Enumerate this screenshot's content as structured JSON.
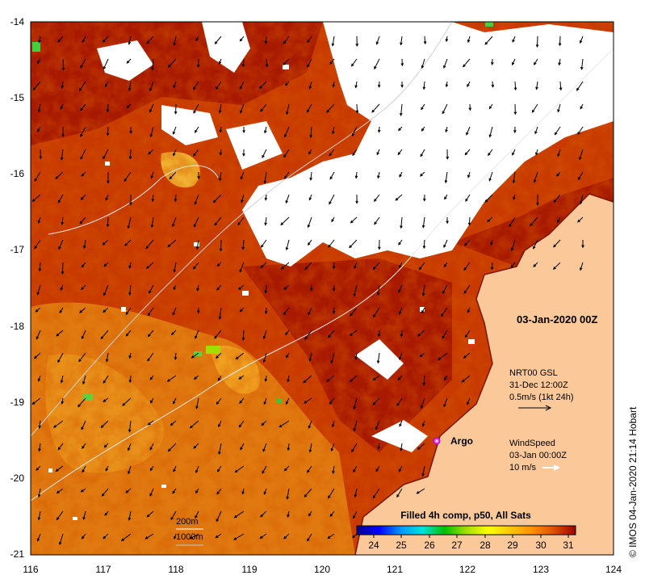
{
  "map": {
    "lon_ticks": [
      "116",
      "117",
      "118",
      "119",
      "120",
      "121",
      "122",
      "123",
      "124"
    ],
    "lat_ticks": [
      "-14",
      "-15",
      "-16",
      "-17",
      "-18",
      "-19",
      "-20",
      "-21"
    ]
  },
  "timestamp_label": "03-Jan-2020 00Z",
  "current_legend": {
    "title": "NRT00 GSL",
    "time": "31-Dec 12:00Z",
    "scale": "0.5m/s (1kt 24h)"
  },
  "wind_legend": {
    "title": "WindSpeed",
    "time": "03-Jan 00:00Z",
    "scale": "10 m/s"
  },
  "argo": {
    "label": "Argo",
    "marker_color": "#ff33ff"
  },
  "bathymetry_legend": {
    "contour1": "200m",
    "contour2": "1000m"
  },
  "colorbar": {
    "title": "Filled 4h comp, p50, All Sats",
    "ticks": [
      "24",
      "25",
      "26",
      "27",
      "28",
      "29",
      "30",
      "31"
    ],
    "colors": [
      "#00008b",
      "#0000ff",
      "#0096ff",
      "#00e0e0",
      "#00c000",
      "#a0e000",
      "#ffff00",
      "#ffc800",
      "#ff9000",
      "#e05000",
      "#c02000",
      "#a00000"
    ]
  },
  "credit": "© IMOS 04-Jan-2020 21:14 Hobart",
  "colors": {
    "land": "#fbc89a",
    "cloud": "#ffffff",
    "sst_dark": "#a81a00",
    "sst_mid": "#d55500",
    "sst_warm": "#ee8a10"
  }
}
